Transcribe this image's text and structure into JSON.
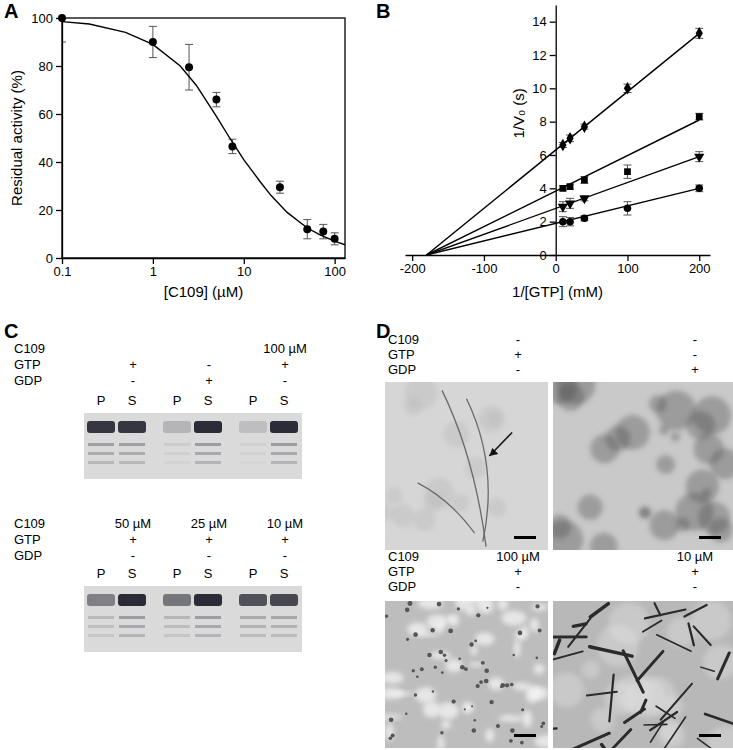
{
  "chart_data": [
    {
      "type": "line",
      "title": "A",
      "x_label": "[C109] (µM)",
      "y_label": "Residual activity (%)",
      "log": "x",
      "grid": false,
      "xlim": [
        0.1,
        130
      ],
      "xticks": [
        0.1,
        1,
        10,
        100
      ],
      "ylim": [
        0,
        100
      ],
      "yticks": [
        0,
        20,
        40,
        60,
        80,
        100
      ],
      "series": [
        {
          "type": "scatter",
          "marker": "circle",
          "color": "#000000",
          "x": [
            0.1,
            1,
            2.5,
            5,
            7.5,
            25,
            50,
            75,
            100
          ],
          "values": [
            100,
            90,
            79.5,
            66,
            46.5,
            29.5,
            12,
            11,
            8
          ],
          "errors": [
            10,
            6.5,
            9.5,
            3,
            3,
            2.5,
            4,
            3,
            2.5
          ]
        },
        {
          "type": "line",
          "line_style": "solid",
          "color": "#000000",
          "x": [
            0.1,
            0.2,
            0.5,
            1,
            2,
            3,
            5,
            7,
            10,
            15,
            20,
            30,
            50,
            70,
            100,
            130
          ],
          "values": [
            98.5,
            97.5,
            94,
            89,
            80,
            72,
            59,
            50,
            41,
            32,
            26,
            19,
            12.5,
            9.5,
            7,
            5.5
          ]
        }
      ]
    },
    {
      "type": "line",
      "title": "B",
      "x_label": "1/[GTP] (mM)",
      "y_label": "1/V₀ (s)",
      "grid": false,
      "xlim": [
        -210,
        215
      ],
      "xticks": [
        -200,
        -100,
        0,
        100,
        200
      ],
      "ylim": [
        0,
        15
      ],
      "yticks": [
        0,
        2,
        4,
        6,
        8,
        10,
        12,
        14
      ],
      "series": [
        {
          "type": "scatter",
          "marker": "diamond",
          "color": "#000000",
          "x": [
            10,
            20,
            40,
            100,
            200
          ],
          "values": [
            6.6,
            7.0,
            7.7,
            10.0,
            13.3
          ],
          "errors": [
            0.15,
            0.2,
            0.15,
            0.25,
            0.3
          ]
        },
        {
          "type": "scatter",
          "marker": "square",
          "color": "#000000",
          "x": [
            10,
            20,
            40,
            100,
            200
          ],
          "values": [
            4.0,
            4.1,
            4.5,
            5.0,
            8.3
          ],
          "errors": [
            0.15,
            0.15,
            0.2,
            0.4,
            0.2
          ]
        },
        {
          "type": "scatter",
          "marker": "triangle-down",
          "color": "#000000",
          "x": [
            10,
            20,
            40,
            100,
            200
          ],
          "values": [
            2.9,
            3.1,
            3.4,
            null,
            5.9
          ],
          "errors": [
            0.3,
            0.3,
            0.15,
            null,
            0.3
          ]
        },
        {
          "type": "scatter",
          "marker": "circle",
          "color": "#000000",
          "x": [
            10,
            20,
            40,
            100,
            200
          ],
          "values": [
            2.0,
            2.0,
            2.2,
            2.8,
            4.0
          ],
          "errors": [
            0.3,
            0.25,
            0.15,
            0.4,
            0.2
          ]
        },
        {
          "type": "line",
          "line_style": "solid",
          "color": "#000000",
          "x": [
            -180,
            200
          ],
          "values": [
            0,
            13.3
          ]
        },
        {
          "type": "line",
          "line_style": "solid",
          "color": "#000000",
          "x": [
            -180,
            200
          ],
          "values": [
            0,
            8.1
          ]
        },
        {
          "type": "line",
          "line_style": "solid",
          "color": "#000000",
          "x": [
            -180,
            200
          ],
          "values": [
            0,
            5.9
          ]
        },
        {
          "type": "line",
          "line_style": "solid",
          "color": "#000000",
          "x": [
            -180,
            200
          ],
          "values": [
            0,
            4.0
          ]
        }
      ]
    }
  ],
  "gels": {
    "title": "C",
    "rows": [
      "C109",
      "GTP",
      "GDP"
    ],
    "blots": [
      {
        "conditions": [
          [
            null,
            "+",
            "-"
          ],
          [
            null,
            "-",
            "+"
          ],
          [
            "100 µM",
            "+",
            "-"
          ]
        ],
        "fractions": [
          "P",
          "S",
          "P",
          "S",
          "P",
          "S"
        ],
        "intensity": [
          0.9,
          0.9,
          0.2,
          0.95,
          0.15,
          0.95
        ]
      },
      {
        "conditions": [
          [
            "50 µM",
            "+",
            "-"
          ],
          [
            "25 µM",
            "+",
            "-"
          ],
          [
            "10 µM",
            "+",
            "-"
          ]
        ],
        "fractions": [
          "P",
          "S",
          "P",
          "S",
          "P",
          "S"
        ],
        "intensity": [
          0.5,
          0.95,
          0.55,
          0.95,
          0.75,
          0.8
        ]
      }
    ]
  },
  "micrographs": {
    "title": "D",
    "rows": [
      "C109",
      "GTP",
      "GDP"
    ],
    "blocks": [
      {
        "conditions": [
          [
            "-",
            "+",
            "-"
          ],
          [
            "-",
            "-",
            "+"
          ]
        ]
      },
      {
        "conditions": [
          [
            "100 µM",
            "+",
            "-"
          ],
          [
            "10 µM",
            "+",
            "-"
          ]
        ]
      }
    ]
  }
}
